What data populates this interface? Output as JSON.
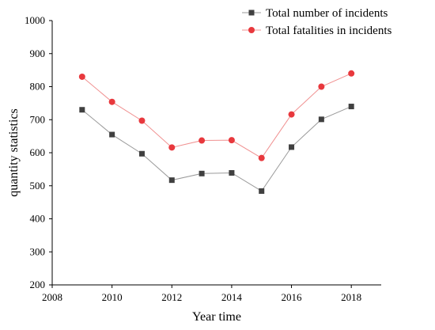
{
  "chart_data": {
    "type": "line",
    "title": "",
    "xlabel": "Year time",
    "ylabel": "quantity statistics",
    "xlim": [
      2008,
      2019
    ],
    "ylim": [
      200,
      1000
    ],
    "xticks": [
      2008,
      2010,
      2012,
      2014,
      2016,
      2018
    ],
    "yticks": [
      200,
      300,
      400,
      500,
      600,
      700,
      800,
      900,
      1000
    ],
    "x": [
      2009,
      2010,
      2011,
      2012,
      2013,
      2014,
      2015,
      2016,
      2017,
      2018
    ],
    "grid": false,
    "legend_position": "top-right",
    "series": [
      {
        "name": "Total number of incidents",
        "marker": "square",
        "marker_color": "#404040",
        "line_color": "#9a9a9a",
        "values": [
          730,
          655,
          597,
          517,
          537,
          539,
          484,
          617,
          701,
          740
        ]
      },
      {
        "name": "Total fatalities in incidents",
        "marker": "circle",
        "marker_color": "#e8383d",
        "line_color": "#f09090",
        "values": [
          830,
          754,
          697,
          616,
          637,
          638,
          584,
          716,
          800,
          840
        ]
      }
    ]
  }
}
